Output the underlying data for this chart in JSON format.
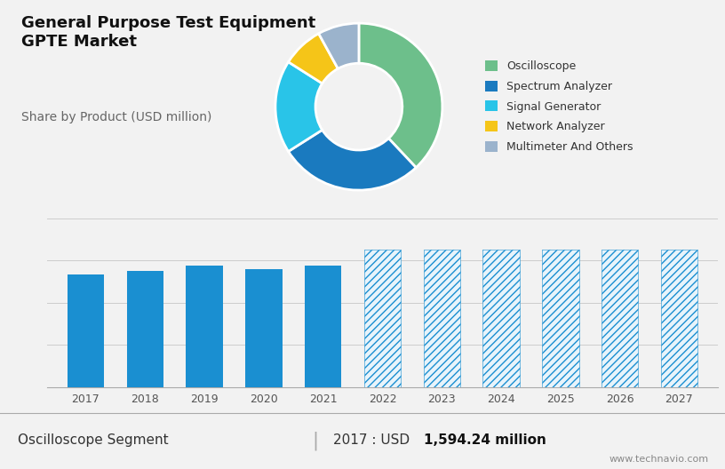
{
  "title_line1": "General Purpose Test Equipment",
  "title_line2": "GPTE Market",
  "subtitle": "Share by Product (USD million)",
  "pie_values": [
    38,
    28,
    18,
    8,
    8
  ],
  "pie_colors": [
    "#6dbf8b",
    "#1a7abf",
    "#29c4e8",
    "#f5c518",
    "#9bb3cc"
  ],
  "pie_labels": [
    "Oscilloscope",
    "Spectrum Analyzer",
    "Signal Generator",
    "Network Analyzer",
    "Multimeter And Others"
  ],
  "bar_years_solid": [
    2017,
    2018,
    2019,
    2020,
    2021
  ],
  "bar_values_solid": [
    1594,
    1650,
    1720,
    1680,
    1730
  ],
  "bar_years_hatched": [
    2022,
    2023,
    2024,
    2025,
    2026,
    2027
  ],
  "bar_values_hatched": [
    1950,
    1950,
    1950,
    1950,
    1950,
    1950
  ],
  "bar_color_solid": "#1a8fd1",
  "bar_color_hatched_face": "#e8f4fb",
  "bar_color_hatched_edge": "#1a8fd1",
  "top_bg_color": "#d0d8e4",
  "bottom_bg_color": "#f2f2f2",
  "footer_text": "Oscilloscope Segment",
  "footer_value": "2017 : USD ",
  "footer_bold": "1,594.24 million",
  "watermark": "www.technavio.com",
  "bar_ylim": [
    0,
    2400
  ],
  "bar_grid_lines": [
    600,
    1200,
    1800,
    2400
  ],
  "sep_color": "#b0b8c4"
}
